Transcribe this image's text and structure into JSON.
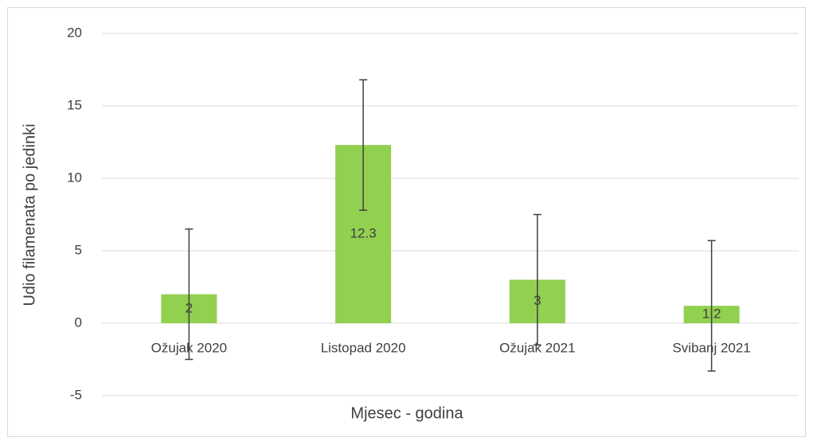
{
  "chart_data": {
    "type": "bar",
    "x_label": "Mjesec - godina",
    "y_label": "Udio filamenata po jedinki",
    "categories": [
      "Ožujak 2020",
      "Listopad 2020",
      "Ožujak 2021",
      "Svibanj 2021"
    ],
    "values": [
      2,
      12.3,
      3,
      1.2
    ],
    "errors": [
      4.5,
      4.5,
      4.5,
      4.5
    ],
    "color": "#92d050",
    "error_color": "#404040",
    "ylim": [
      -5,
      20
    ],
    "yticks": [
      -5,
      0,
      5,
      10,
      15,
      20
    ],
    "grid": true
  }
}
